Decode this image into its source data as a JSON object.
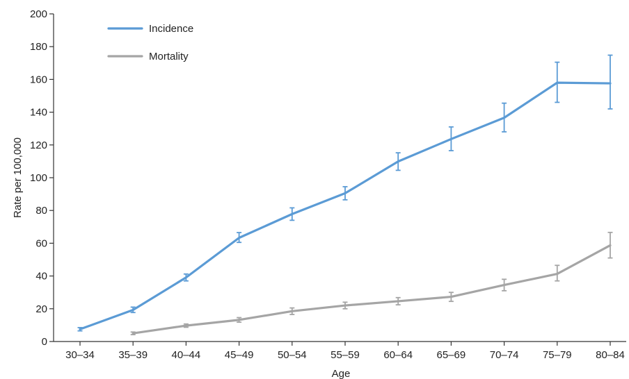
{
  "chart_data": {
    "type": "line",
    "title": "",
    "xlabel": "Age",
    "ylabel": "Rate per 100,000",
    "categories": [
      "30–34",
      "35–39",
      "40–44",
      "45–49",
      "50–54",
      "55–59",
      "60–64",
      "65–69",
      "70–74",
      "75–79",
      "80–84"
    ],
    "ylim": [
      0,
      200
    ],
    "yticks": [
      "0",
      "20",
      "40",
      "60",
      "80",
      "100",
      "120",
      "140",
      "160",
      "180",
      "200"
    ],
    "grid": false,
    "legend_position": "top-left",
    "series": [
      {
        "name": "Incidence",
        "color": "#5b9bd5",
        "values": [
          7.5,
          19.3,
          39.1,
          63.3,
          77.8,
          90.5,
          109.9,
          123.6,
          136.6,
          158,
          157.6
        ],
        "error_low": [
          6.5,
          17.7,
          37,
          60.5,
          74,
          86.5,
          104.5,
          116.5,
          128,
          146,
          142
        ],
        "error_high": [
          8.5,
          21,
          41.2,
          66.5,
          81.6,
          94.5,
          115.2,
          131,
          145.5,
          170.5,
          174.8
        ]
      },
      {
        "name": "Mortality",
        "color": "#a5a5a5",
        "values": [
          null,
          5,
          9.7,
          13.2,
          18.5,
          22,
          24.6,
          27.3,
          34.5,
          41.3,
          58.7
        ],
        "error_low": [
          null,
          4.2,
          8.7,
          11.8,
          16.5,
          20,
          22.4,
          24.5,
          31,
          37,
          51
        ],
        "error_high": [
          null,
          5.8,
          10.7,
          14.6,
          20.5,
          24,
          26.8,
          30,
          38,
          46.5,
          66.6
        ]
      }
    ]
  }
}
